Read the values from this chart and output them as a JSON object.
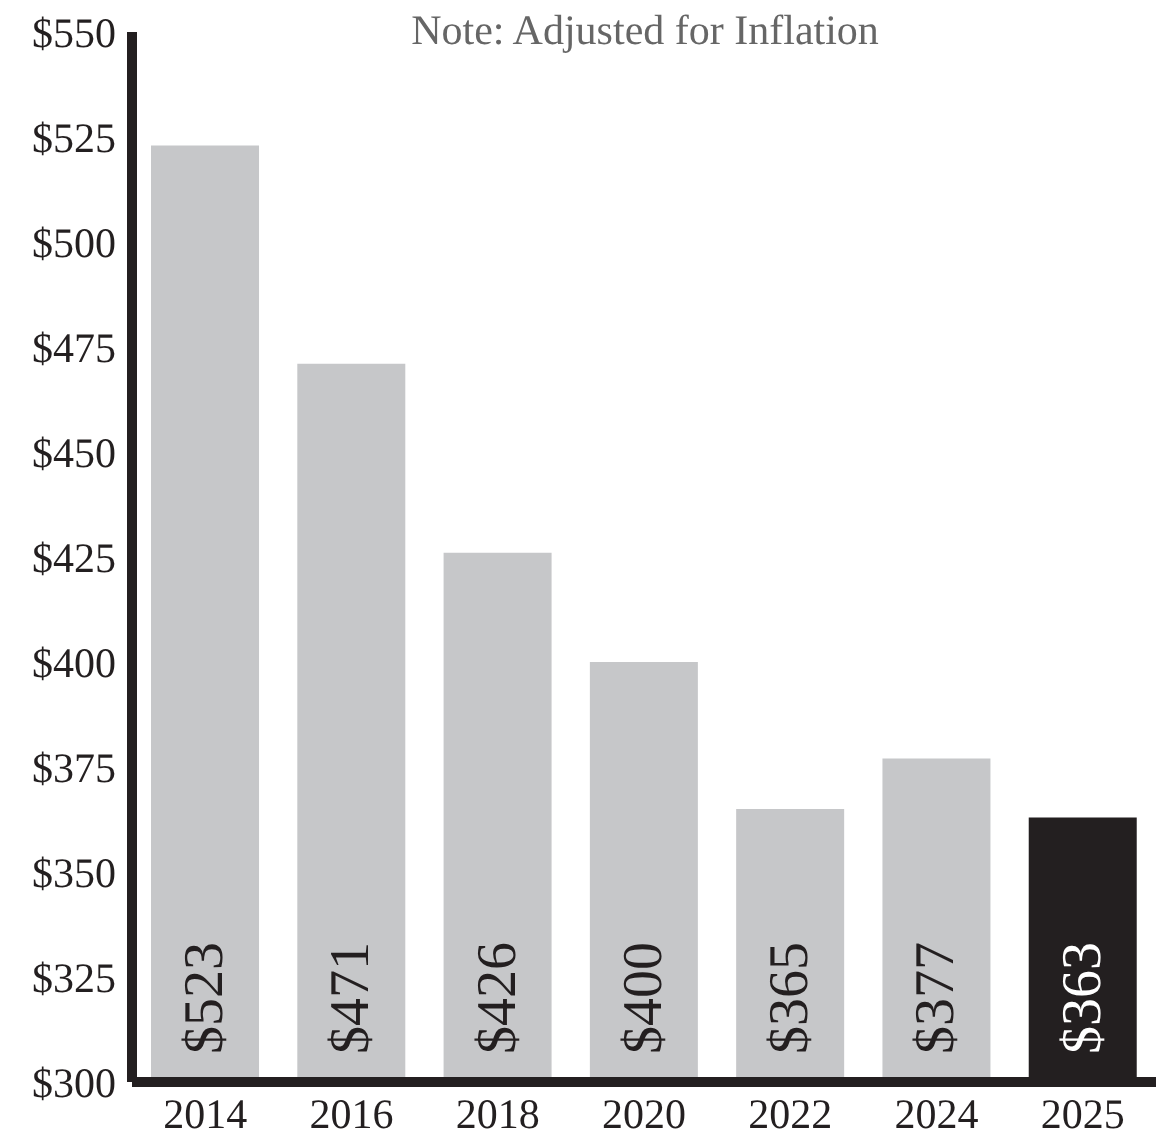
{
  "chart_data": {
    "type": "bar",
    "annotations": [
      "Note: Adjusted for Inflation"
    ],
    "categories": [
      "2014",
      "2016",
      "2018",
      "2020",
      "2022",
      "2024",
      "2025"
    ],
    "values": [
      523,
      471,
      426,
      400,
      365,
      377,
      363
    ],
    "value_labels": [
      "$523",
      "$471",
      "$426",
      "$400",
      "$365",
      "$377",
      "$363"
    ],
    "colors": [
      "#c6c7c9",
      "#c6c7c9",
      "#c6c7c9",
      "#c6c7c9",
      "#c6c7c9",
      "#c6c7c9",
      "#231f20"
    ],
    "ylim": [
      300,
      550
    ],
    "yticks": [
      {
        "value": 300,
        "label": "$300"
      },
      {
        "value": 325,
        "label": "$325"
      },
      {
        "value": 350,
        "label": "$350"
      },
      {
        "value": 375,
        "label": "$375"
      },
      {
        "value": 400,
        "label": "$400"
      },
      {
        "value": 425,
        "label": "$425"
      },
      {
        "value": 450,
        "label": "$450"
      },
      {
        "value": 475,
        "label": "$475"
      },
      {
        "value": 500,
        "label": "$500"
      },
      {
        "value": 525,
        "label": "$525"
      },
      {
        "value": 550,
        "label": "$550"
      }
    ]
  }
}
